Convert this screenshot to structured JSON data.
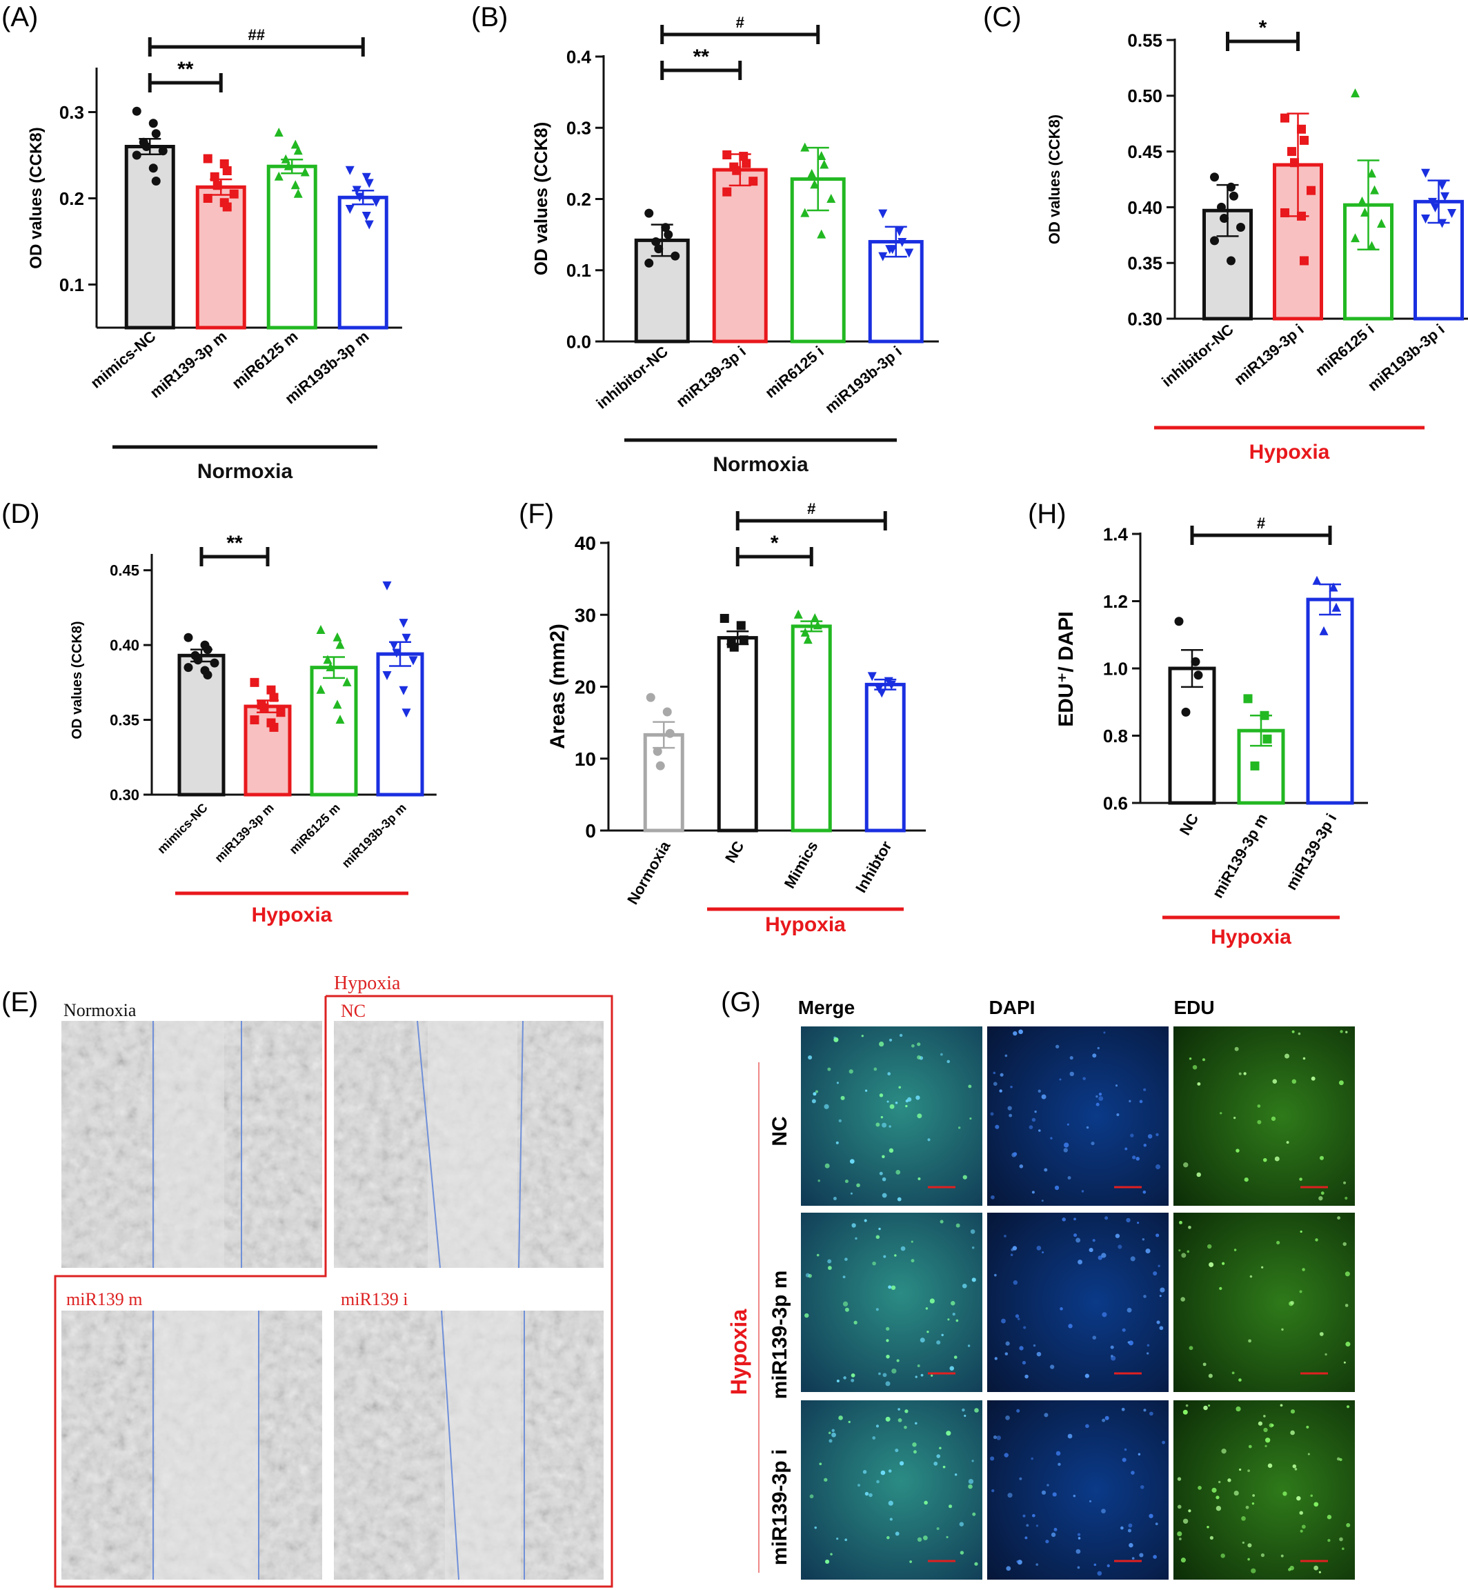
{
  "colors": {
    "black": "#111111",
    "red": "#e8181c",
    "red_fill": "#f8c0c0",
    "green": "#22b822",
    "blue": "#1a2fe0",
    "gray": "#a8a8a8",
    "gray_fill": "#dddddd",
    "line_blue": "#6f8fd8"
  },
  "chart_data": [
    {
      "panel": "(A)",
      "type": "bar",
      "ylabel": "OD values (CCK8)",
      "ylim": [
        0.05,
        0.35
      ],
      "yticks": [
        "0.1",
        "0.2",
        "0.3"
      ],
      "ytick_values": [
        0.1,
        0.2,
        0.3
      ],
      "categories": [
        "mimics-NC",
        "miR139-3p m",
        "miR6125 m",
        "miR193b-3p m"
      ],
      "values": [
        0.26,
        0.213,
        0.237,
        0.201
      ],
      "errors": [
        0.009,
        0.009,
        0.008,
        0.008
      ],
      "marker_colors": [
        "black",
        "red",
        "green",
        "blue"
      ],
      "fill_colors": [
        "gray_fill",
        "red_fill",
        "white",
        "white"
      ],
      "marker_shapes": [
        "circle",
        "square",
        "triangle",
        "triangle-down"
      ],
      "points": [
        [
          0.301,
          0.287,
          0.275,
          0.265,
          0.26,
          0.255,
          0.25,
          0.235,
          0.22
        ],
        [
          0.246,
          0.24,
          0.232,
          0.225,
          0.215,
          0.205,
          0.2,
          0.195,
          0.19
        ],
        [
          0.276,
          0.262,
          0.255,
          0.245,
          0.237,
          0.23,
          0.225,
          0.215,
          0.205
        ],
        [
          0.233,
          0.225,
          0.218,
          0.21,
          0.202,
          0.196,
          0.188,
          0.18,
          0.17
        ]
      ],
      "comparisons": [
        {
          "from": 0,
          "to": 1,
          "label": "**"
        },
        {
          "from": 0,
          "to": 3,
          "label": "##"
        }
      ],
      "group_label": "Normoxia",
      "group_color": "black"
    },
    {
      "panel": "(B)",
      "type": "bar",
      "ylabel": "OD values (CCK8)",
      "ylim": [
        0.0,
        0.4
      ],
      "yticks": [
        "0.0",
        "0.1",
        "0.2",
        "0.3",
        "0.4"
      ],
      "ytick_values": [
        0.0,
        0.1,
        0.2,
        0.3,
        0.4
      ],
      "categories": [
        "inhibitor-NC",
        "miR139-3p i",
        "miR6125 i",
        "miR193b-3p i"
      ],
      "values": [
        0.142,
        0.241,
        0.228,
        0.14
      ],
      "errors": [
        0.022,
        0.022,
        0.044,
        0.021
      ],
      "marker_colors": [
        "black",
        "red",
        "green",
        "blue"
      ],
      "fill_colors": [
        "gray_fill",
        "red_fill",
        "white",
        "white"
      ],
      "marker_shapes": [
        "circle",
        "square",
        "triangle",
        "triangle-down"
      ],
      "points": [
        [
          0.18,
          0.16,
          0.15,
          0.14,
          0.13,
          0.12,
          0.11
        ],
        [
          0.262,
          0.26,
          0.25,
          0.245,
          0.24,
          0.225,
          0.21
        ],
        [
          0.272,
          0.26,
          0.248,
          0.235,
          0.22,
          0.2,
          0.18,
          0.15
        ],
        [
          0.18,
          0.155,
          0.14,
          0.13,
          0.13,
          0.125,
          0.12
        ]
      ],
      "comparisons": [
        {
          "from": 0,
          "to": 1,
          "label": "**"
        },
        {
          "from": 0,
          "to": 2,
          "label": "#"
        }
      ],
      "group_label": "Normoxia",
      "group_color": "black"
    },
    {
      "panel": "(C)",
      "type": "bar",
      "ylabel": "OD values (CCK8)",
      "ylim": [
        0.3,
        0.55
      ],
      "yticks": [
        "0.30",
        "0.35",
        "0.40",
        "0.45",
        "0.50",
        "0.55"
      ],
      "ytick_values": [
        0.3,
        0.35,
        0.4,
        0.45,
        0.5,
        0.55
      ],
      "categories": [
        "inhibitor-NC",
        "miR139-3p i",
        "miR6125 i",
        "miR193b-3p i"
      ],
      "values": [
        0.397,
        0.438,
        0.402,
        0.405
      ],
      "errors": [
        0.023,
        0.046,
        0.04,
        0.019
      ],
      "marker_colors": [
        "black",
        "red",
        "green",
        "blue"
      ],
      "fill_colors": [
        "gray_fill",
        "red_fill",
        "white",
        "white"
      ],
      "marker_shapes": [
        "circle",
        "square",
        "triangle",
        "triangle-down"
      ],
      "points": [
        [
          0.427,
          0.418,
          0.41,
          0.4,
          0.39,
          0.382,
          0.37,
          0.352
        ],
        [
          0.48,
          0.47,
          0.46,
          0.45,
          0.44,
          0.415,
          0.395,
          0.392,
          0.352
        ],
        [
          0.502,
          0.43,
          0.415,
          0.405,
          0.395,
          0.385,
          0.372,
          0.365
        ],
        [
          0.431,
          0.42,
          0.41,
          0.405,
          0.4,
          0.395,
          0.39,
          0.386
        ]
      ],
      "comparisons": [
        {
          "from": 0,
          "to": 1,
          "label": "*"
        }
      ],
      "group_label": "Hypoxia",
      "group_color": "red"
    },
    {
      "panel": "(D)",
      "type": "bar",
      "ylabel": "OD values (CCK8)",
      "ylim": [
        0.3,
        0.46
      ],
      "yticks": [
        "0.30",
        "0.35",
        "0.40",
        "0.45"
      ],
      "ytick_values": [
        0.3,
        0.35,
        0.4,
        0.45
      ],
      "categories": [
        "mimics-NC",
        "miR139-3p m",
        "miR6125 m",
        "miR193b-3p m"
      ],
      "values": [
        0.393,
        0.359,
        0.385,
        0.394
      ],
      "errors": [
        0.004,
        0.004,
        0.007,
        0.008
      ],
      "marker_colors": [
        "black",
        "red",
        "green",
        "blue"
      ],
      "fill_colors": [
        "gray_fill",
        "red_fill",
        "white",
        "white"
      ],
      "marker_shapes": [
        "circle",
        "square",
        "triangle",
        "triangle-down"
      ],
      "points": [
        [
          0.405,
          0.4,
          0.397,
          0.393,
          0.39,
          0.388,
          0.385,
          0.383,
          0.38
        ],
        [
          0.375,
          0.37,
          0.365,
          0.36,
          0.358,
          0.355,
          0.35,
          0.348,
          0.345
        ],
        [
          0.41,
          0.405,
          0.4,
          0.39,
          0.385,
          0.375,
          0.37,
          0.36,
          0.35
        ],
        [
          0.44,
          0.415,
          0.405,
          0.4,
          0.395,
          0.39,
          0.38,
          0.37,
          0.355
        ]
      ],
      "comparisons": [
        {
          "from": 0,
          "to": 1,
          "label": "**"
        }
      ],
      "group_label": "Hypoxia",
      "group_color": "red"
    },
    {
      "panel": "(F)",
      "type": "bar",
      "ylabel": "Areas (mm2)",
      "ylim": [
        0,
        40
      ],
      "yticks": [
        "0",
        "10",
        "20",
        "30",
        "40"
      ],
      "ytick_values": [
        0,
        10,
        20,
        30,
        40
      ],
      "categories": [
        "Normoxia",
        "NC",
        "Mimics",
        "Inhibtor"
      ],
      "values": [
        13.3,
        26.8,
        28.4,
        20.3
      ],
      "errors": [
        1.8,
        0.9,
        0.7,
        0.7
      ],
      "marker_colors": [
        "gray",
        "black",
        "green",
        "blue"
      ],
      "fill_colors": [
        "white",
        "white",
        "white",
        "white"
      ],
      "marker_shapes": [
        "circle",
        "square",
        "triangle",
        "triangle-down"
      ],
      "points": [
        [
          18.5,
          16.5,
          13.5,
          11,
          9
        ],
        [
          29.5,
          28.5,
          26.5,
          26,
          25.5
        ],
        [
          30.0,
          29.5,
          28.5,
          27.5,
          26.5
        ],
        [
          21.5,
          20.8,
          20.3,
          19.8,
          19.2
        ]
      ],
      "comparisons": [
        {
          "from": 1,
          "to": 2,
          "label": "*"
        },
        {
          "from": 1,
          "to": 3,
          "label": "#"
        }
      ],
      "group_label": "Hypoxia",
      "group_color": "red",
      "group_from": 1
    },
    {
      "panel": "(H)",
      "type": "bar",
      "ylabel": "EDU⁺/ DAPI",
      "ylim": [
        0.6,
        1.4
      ],
      "yticks": [
        "0.6",
        "0.8",
        "1.0",
        "1.2",
        "1.4"
      ],
      "ytick_values": [
        0.6,
        0.8,
        1.0,
        1.2,
        1.4
      ],
      "categories": [
        "NC",
        "miR139-3p m",
        "miR139-3p i"
      ],
      "values": [
        1.0,
        0.815,
        1.205
      ],
      "errors": [
        0.055,
        0.045,
        0.045
      ],
      "marker_colors": [
        "black",
        "green",
        "blue"
      ],
      "fill_colors": [
        "white",
        "white",
        "white"
      ],
      "marker_shapes": [
        "circle",
        "square",
        "triangle"
      ],
      "points": [
        [
          1.14,
          1.02,
          0.98,
          0.87
        ],
        [
          0.91,
          0.86,
          0.79,
          0.71
        ],
        [
          1.26,
          1.24,
          1.18,
          1.11
        ]
      ],
      "comparisons": [
        {
          "from": 0,
          "to": 2,
          "label": "#"
        }
      ],
      "group_label": "Hypoxia",
      "group_color": "red"
    }
  ],
  "panel_e": {
    "label": "(E)",
    "normoxia_label": "Normoxia",
    "hypoxia_label": "Hypoxia",
    "images": [
      "",
      "NC",
      "miR139 m",
      "miR139 i"
    ]
  },
  "panel_g": {
    "label": "(G)",
    "columns": [
      "Merge",
      "DAPI",
      "EDU"
    ],
    "rows": [
      "NC",
      "miR139-3p m",
      "miR139-3p i"
    ],
    "side_label": "Hypoxia"
  }
}
